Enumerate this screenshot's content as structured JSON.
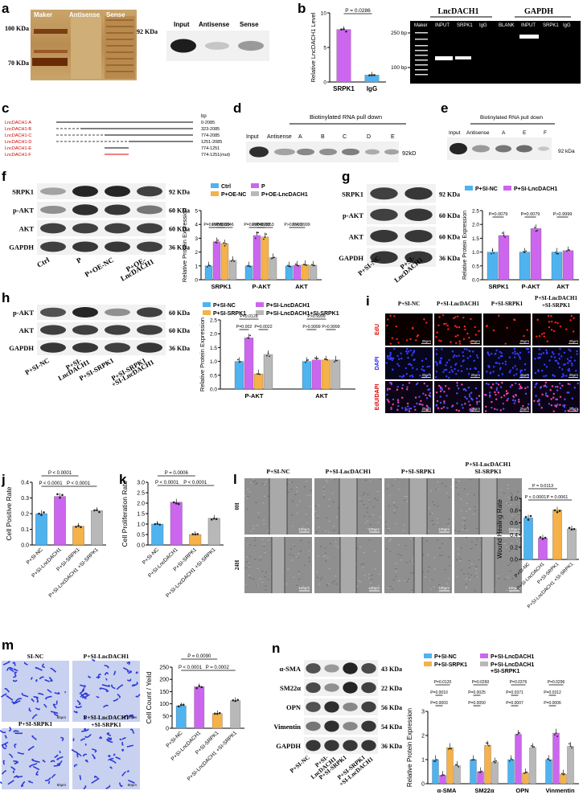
{
  "panels": {
    "a": {
      "letter": "a",
      "gel_headers": [
        "Maker",
        "Antisense",
        "Sense"
      ],
      "gel_markers": [
        "100 KDa",
        "70 KDa"
      ],
      "blot_headers": [
        "Input",
        "Antisense",
        "Sense"
      ],
      "blot_marker": "92 KDa"
    },
    "b": {
      "letter": "b",
      "pcr_title_left": "LncDACH1",
      "pcr_title_right": "GAPDH",
      "pcr_lanes": [
        "Maker",
        "INPUT",
        "SRPK1",
        "IgG",
        "BLANK",
        "INPUT",
        "SRPK1",
        "IgG"
      ],
      "pcr_markers": [
        "250 bp",
        "100 bp"
      ]
    },
    "c": {
      "letter": "c",
      "bp_header": "bp",
      "constructs": [
        {
          "name": "LncDACH1-A",
          "range": "0-2085"
        },
        {
          "name": "LncDACH1-B",
          "range": "323-2085"
        },
        {
          "name": "LncDACH1-C",
          "range": "774-2085"
        },
        {
          "name": "LncDACH1-D",
          "range": "1251-2085"
        },
        {
          "name": "LncDACH1-E",
          "range": "774-1251"
        },
        {
          "name": "LncDACH1-F",
          "range": "774-1251(mut)"
        }
      ]
    },
    "d": {
      "letter": "d",
      "title": "Biotinylated   RNA   pull   down",
      "lanes": [
        "Input",
        "Antisense",
        "A",
        "B",
        "C",
        "D",
        "E"
      ],
      "marker": "92kD"
    },
    "e": {
      "letter": "e",
      "title": "Biotinylated RNA pull down",
      "lanes": [
        "Input",
        "Antisense",
        "A",
        "E",
        "F"
      ],
      "marker": "92 kDa"
    },
    "f": {
      "letter": "f",
      "rows": [
        {
          "name": "SRPK1",
          "kda": "92 KDa"
        },
        {
          "name": "p-AKT",
          "kda": "60 KDa"
        },
        {
          "name": "AKT",
          "kda": "60 KDa"
        },
        {
          "name": "GAPDH",
          "kda": "36 KDa"
        }
      ],
      "lanes": [
        "Ctrl",
        "P",
        "P+OE-NC",
        "P+OE-LncDACH1"
      ],
      "lane_lines": [
        [
          "Ctrl"
        ],
        [
          "P"
        ],
        [
          "P+OE-NC"
        ],
        [
          "P+OE-",
          "LncDACH1"
        ]
      ]
    },
    "g": {
      "letter": "g",
      "rows": [
        {
          "name": "SRPK1",
          "kda": "92 KDa"
        },
        {
          "name": "p-AKT",
          "kda": "60 KDa"
        },
        {
          "name": "AKT",
          "kda": "60 KDa"
        },
        {
          "name": "GAPDH",
          "kda": "36 KDa"
        }
      ],
      "lanes": [
        "P+SI-NC",
        "P+SI-LncDACH1"
      ],
      "lane_lines": [
        [
          "P+SI-NC"
        ],
        [
          "P+SI-",
          "LncDACH1"
        ]
      ]
    },
    "h": {
      "letter": "h",
      "rows": [
        {
          "name": "p-AKT",
          "kda": "60 KDa"
        },
        {
          "name": "AKT",
          "kda": "60 KDa"
        },
        {
          "name": "GAPDH",
          "kda": "36 KDa"
        }
      ],
      "lanes": [
        "P+SI-NC",
        "P+SI-LncDACH1",
        "P+SI-SRPK1",
        "P+SI-SRPK1 +SI-LncDACH1"
      ],
      "lane_lines": [
        [
          "P+SI-NC"
        ],
        [
          "P+SI-",
          "LncDACH1"
        ],
        [
          "P+SI-SRPK1"
        ],
        [
          "P+SI-SRPK1",
          "+SI-LncDACH1"
        ]
      ]
    },
    "i": {
      "letter": "i",
      "cols": [
        "P+SI-NC",
        "P+SI-LncDACH1",
        "P+SI-SRPK1",
        "P+SI-LncDACH1 +SI-SRPK1"
      ],
      "rows": [
        "EdU",
        "DAPI",
        "EdU/DAPI"
      ],
      "scale": "25μm"
    },
    "j": {
      "letter": "j"
    },
    "k": {
      "letter": "k"
    },
    "l": {
      "letter": "l",
      "cols": [
        "P+SI-NC",
        "P+SI-LncDACH1",
        "P+SI-SRPK1",
        "P+SI-LncDACH1 SI-SRPK1"
      ],
      "rows": [
        "0H",
        "24H"
      ],
      "scale": "100μm"
    },
    "m": {
      "letter": "m",
      "labels": [
        "SI-NC",
        "P+SI-LncDACH1",
        "P+SI-SRPK1",
        "P+SI-LncDACH1 +SI-SRPK1"
      ],
      "scale": "50μm"
    },
    "n": {
      "letter": "n",
      "rows": [
        {
          "name": "α-SMA",
          "kda": "43 KDa"
        },
        {
          "name": "SM22α",
          "kda": "22 KDa"
        },
        {
          "name": "OPN",
          "kda": "56 KDa"
        },
        {
          "name": "Vimentin",
          "kda": "54 KDa"
        },
        {
          "name": "GAPDH",
          "kda": "36 KDa"
        }
      ],
      "lanes": [
        "P+SI-NC",
        "P+SI-LncDACH1",
        "P+SI-SRPK1",
        "P+SI-SRPK1 +SI-LncDACH1"
      ],
      "lane_lines": [
        [
          "P+SI-NC"
        ],
        [
          "P+SI-",
          "LncDACH1"
        ],
        [
          "P+SI-SRPK1"
        ],
        [
          "P+SI-SRPK1",
          "+SI-LncDACH1"
        ]
      ]
    }
  },
  "chart_data": [
    {
      "id": "b",
      "type": "bar",
      "categories": [
        "SRPK1",
        "IgG"
      ],
      "values": [
        7.6,
        1.0
      ],
      "ylabel": "Relative LncDACH1 Level",
      "ylim": [
        0,
        10
      ],
      "yticks": [
        0,
        5,
        10
      ],
      "colors": [
        "#cc66ee",
        "#4fb3f0"
      ],
      "comparisons": [
        {
          "a": 0,
          "b": 1,
          "p": "P = 0.0286"
        }
      ]
    },
    {
      "id": "f",
      "type": "bar",
      "ylabel": "Relative Protein Expression",
      "ylim": [
        0,
        5
      ],
      "yticks": [
        0,
        1,
        2,
        3,
        4,
        5
      ],
      "categories": [
        "SRPK1",
        "P-AKT",
        "AKT"
      ],
      "series": [
        {
          "name": "Ctrl",
          "color": "#4fb3f0",
          "values": [
            1,
            1,
            1
          ]
        },
        {
          "name": "P",
          "color": "#cc66ee",
          "values": [
            2.75,
            3.2,
            1.05
          ]
        },
        {
          "name": "P+OE-NC",
          "color": "#f5b14a",
          "values": [
            2.6,
            3.1,
            1.1
          ]
        },
        {
          "name": "P+OE-LncDACH1",
          "color": "#b8b8b8",
          "values": [
            1.4,
            1.6,
            1.05
          ]
        }
      ],
      "comparisons": [
        {
          "cat": 0,
          "a": 0,
          "b": 1,
          "p": "P=0.0003",
          "level": 0
        },
        {
          "cat": 0,
          "a": 1,
          "b": 3,
          "p": "P=0.0046",
          "level": 0
        },
        {
          "cat": 0,
          "a": 1,
          "b": 2,
          "p": "P>0.9999",
          "level": 1
        },
        {
          "cat": 1,
          "a": 0,
          "b": 1,
          "p": "P=0.0004",
          "level": 0
        },
        {
          "cat": 1,
          "a": 1,
          "b": 3,
          "p": "P=0.0053",
          "level": 0
        },
        {
          "cat": 1,
          "a": 1,
          "b": 2,
          "p": "P>0.9999",
          "level": 1
        },
        {
          "cat": 2,
          "a": 0,
          "b": 1,
          "p": "P>0.9999",
          "level": 0
        },
        {
          "cat": 2,
          "a": 1,
          "b": 2,
          "p": "P>0.9999",
          "level": 1
        }
      ]
    },
    {
      "id": "g",
      "type": "bar",
      "ylabel": "Relative Protein Expression",
      "ylim": [
        0,
        2.5
      ],
      "yticks": [
        0.0,
        0.5,
        1.0,
        1.5,
        2.0,
        2.5
      ],
      "categories": [
        "SRPK1",
        "P-AKT",
        "AKT"
      ],
      "series": [
        {
          "name": "P+SI-NC",
          "color": "#4fb3f0",
          "values": [
            1,
            1,
            1
          ]
        },
        {
          "name": "P+SI-LncDACH1",
          "color": "#cc66ee",
          "values": [
            1.6,
            1.85,
            1.05
          ]
        }
      ],
      "comparisons": [
        {
          "cat": 0,
          "a": 0,
          "b": 1,
          "p": "P=0.0079",
          "level": 0
        },
        {
          "cat": 1,
          "a": 0,
          "b": 1,
          "p": "P=0.0079",
          "level": 0
        },
        {
          "cat": 2,
          "a": 0,
          "b": 1,
          "p": "P>0.9999",
          "level": 0
        }
      ]
    },
    {
      "id": "h",
      "type": "bar",
      "ylabel": "Relative Protein Expression",
      "ylim": [
        0,
        2.5
      ],
      "yticks": [
        0.0,
        0.5,
        1.0,
        1.5,
        2.0,
        2.5
      ],
      "categories": [
        "P-AKT",
        "AKT"
      ],
      "series": [
        {
          "name": "P+SI-NC",
          "color": "#4fb3f0",
          "values": [
            1,
            1
          ]
        },
        {
          "name": "P+SI-LncDACH1",
          "color": "#cc66ee",
          "values": [
            1.85,
            1.05
          ]
        },
        {
          "name": "P+SI-SRPK1",
          "color": "#f5b14a",
          "values": [
            0.55,
            1.05
          ]
        },
        {
          "name": "P+SI-LncDACH1+SI-SRPK1",
          "color": "#b8b8b8",
          "values": [
            1.25,
            1.05
          ]
        }
      ],
      "comparisons": [
        {
          "cat": 0,
          "a": 0,
          "b": 1,
          "p": "P=0.002",
          "level": 0
        },
        {
          "cat": 0,
          "a": 0,
          "b": 2,
          "p": "P=0.0128",
          "level": 1
        },
        {
          "cat": 0,
          "a": 2,
          "b": 3,
          "p": "P=0.0022",
          "level": 0
        },
        {
          "cat": 1,
          "a": 0,
          "b": 1,
          "p": "P>0.9999",
          "level": 0
        },
        {
          "cat": 1,
          "a": 2,
          "b": 3,
          "p": "P>0.9999",
          "level": 0
        },
        {
          "cat": 1,
          "a": 0,
          "b": 2,
          "p": "P>0.9999",
          "level": 1
        }
      ]
    },
    {
      "id": "j",
      "type": "bar",
      "ylabel": "Cell Positive Rate",
      "ylim": [
        0,
        0.4
      ],
      "yticks": [
        0.0,
        0.1,
        0.2,
        0.3,
        0.4
      ],
      "categories": [
        "P+SI-NC",
        "P+SI-LncDACH1",
        "P+SI-SRPK1",
        "P+SI-LncDACH1 +SI-SRPK1"
      ],
      "values": [
        0.2,
        0.31,
        0.12,
        0.22
      ],
      "colors": [
        "#4fb3f0",
        "#cc66ee",
        "#f5b14a",
        "#b8b8b8"
      ],
      "comparisons": [
        {
          "a": 0,
          "b": 2,
          "p": "P < 0.0001",
          "level": 1
        },
        {
          "a": 0,
          "b": 1,
          "p": "P < 0.0001",
          "level": 0
        },
        {
          "a": 1,
          "b": 3,
          "p": "P < 0.0001",
          "level": 0
        }
      ]
    },
    {
      "id": "k",
      "type": "bar",
      "ylabel": "Cell Proliferation Rate",
      "ylim": [
        0,
        3.0
      ],
      "yticks": [
        0.0,
        0.5,
        1.0,
        1.5,
        2.0,
        2.5,
        3.0
      ],
      "categories": [
        "P+SI-NC",
        "P+SI-LncDACH1",
        "P+SI-SRPK1",
        "P+SI-LncDACH1 +SI-SRPK1"
      ],
      "values": [
        1.0,
        2.05,
        0.5,
        1.28
      ],
      "colors": [
        "#4fb3f0",
        "#cc66ee",
        "#f5b14a",
        "#b8b8b8"
      ],
      "comparisons": [
        {
          "a": 0,
          "b": 2,
          "p": "P = 0.0006",
          "level": 1
        },
        {
          "a": 0,
          "b": 1,
          "p": "P < 0.0001",
          "level": 0
        },
        {
          "a": 1,
          "b": 3,
          "p": "P < 0.0001",
          "level": 0
        }
      ]
    },
    {
      "id": "l",
      "type": "bar",
      "ylabel": "Wound Healing Rate",
      "ylim": [
        0,
        1.0
      ],
      "yticks": [
        0.0,
        0.2,
        0.4,
        0.6,
        0.8,
        1.0
      ],
      "categories": [
        "P+SI-NC",
        "P+SI-LncDACH1",
        "P+SI-SRPK1",
        "P+SI-LncDACH1 +SI-SRPK1"
      ],
      "values": [
        0.68,
        0.35,
        0.81,
        0.5
      ],
      "colors": [
        "#4fb3f0",
        "#cc66ee",
        "#f5b14a",
        "#b8b8b8"
      ],
      "comparisons": [
        {
          "a": 0,
          "b": 2,
          "p": "P = 0.0113",
          "level": 1
        },
        {
          "a": 0,
          "b": 1,
          "p": "P < 0.0001",
          "level": 0
        },
        {
          "a": 1,
          "b": 3,
          "p": "P = 0.0061",
          "level": 0
        }
      ]
    },
    {
      "id": "m",
      "type": "bar",
      "ylabel": "Cell Count / Yeild",
      "ylim": [
        0,
        250
      ],
      "yticks": [
        0,
        50,
        100,
        150,
        200,
        250
      ],
      "categories": [
        "P+SI-NC",
        "P+SI-LncDACH1",
        "P+SI-SRPK1",
        "P+SI-LncDACH1 +SI-SRPK1"
      ],
      "values": [
        92,
        170,
        60,
        113
      ],
      "colors": [
        "#4fb3f0",
        "#cc66ee",
        "#f5b14a",
        "#b8b8b8"
      ],
      "comparisons": [
        {
          "a": 0,
          "b": 2,
          "p": "P = 0.0090",
          "level": 1
        },
        {
          "a": 0,
          "b": 1,
          "p": "P < 0.0001",
          "level": 0
        },
        {
          "a": 1,
          "b": 3,
          "p": "P = 0.0002",
          "level": 0
        }
      ]
    },
    {
      "id": "n",
      "type": "bar",
      "ylabel": "Relative Protein Expression",
      "ylim": [
        0,
        3
      ],
      "yticks": [
        0,
        1,
        2,
        3
      ],
      "categories": [
        "α-SMA",
        "SM22α",
        "OPN",
        "Vinmentin"
      ],
      "series": [
        {
          "name": "P+SI-NC",
          "color": "#4fb3f0",
          "values": [
            1,
            1,
            1,
            1
          ]
        },
        {
          "name": "P+SI-LncDACH1",
          "color": "#cc66ee",
          "values": [
            0.35,
            0.5,
            2.05,
            2.1
          ]
        },
        {
          "name": "P+SI-SRPK1",
          "color": "#f5b14a",
          "values": [
            1.5,
            1.6,
            0.45,
            0.4
          ]
        },
        {
          "name": "P+SI-LncDACH1 +SI-SRPK1",
          "color": "#b8b8b8",
          "values": [
            0.75,
            0.9,
            1.5,
            1.55
          ]
        }
      ],
      "comparisons": [
        {
          "cat": 0,
          "a": 0,
          "b": 2,
          "p": "P=0.0120",
          "level": 2
        },
        {
          "cat": 0,
          "a": 0,
          "b": 1,
          "p": "P=0.0010",
          "level": 1
        },
        {
          "cat": 0,
          "a": 0,
          "b": 1,
          "p": "P=0.0003",
          "level": 0
        },
        {
          "cat": 1,
          "a": 0,
          "b": 2,
          "p": "P=0.0260",
          "level": 2
        },
        {
          "cat": 1,
          "a": 0,
          "b": 1,
          "p": "P=0.0025",
          "level": 1
        },
        {
          "cat": 1,
          "a": 0,
          "b": 1,
          "p": "P=0.0050",
          "level": 0
        },
        {
          "cat": 2,
          "a": 0,
          "b": 2,
          "p": "P=0.0376",
          "level": 2
        },
        {
          "cat": 2,
          "a": 0,
          "b": 1,
          "p": "P=0.0371",
          "level": 1
        },
        {
          "cat": 2,
          "a": 0,
          "b": 1,
          "p": "P=0.0007",
          "level": 0
        },
        {
          "cat": 3,
          "a": 0,
          "b": 2,
          "p": "P=0.0296",
          "level": 2
        },
        {
          "cat": 3,
          "a": 0,
          "b": 1,
          "p": "P=0.0312",
          "level": 1
        },
        {
          "cat": 3,
          "a": 0,
          "b": 1,
          "p": "P=0.0006",
          "level": 0
        }
      ]
    }
  ]
}
